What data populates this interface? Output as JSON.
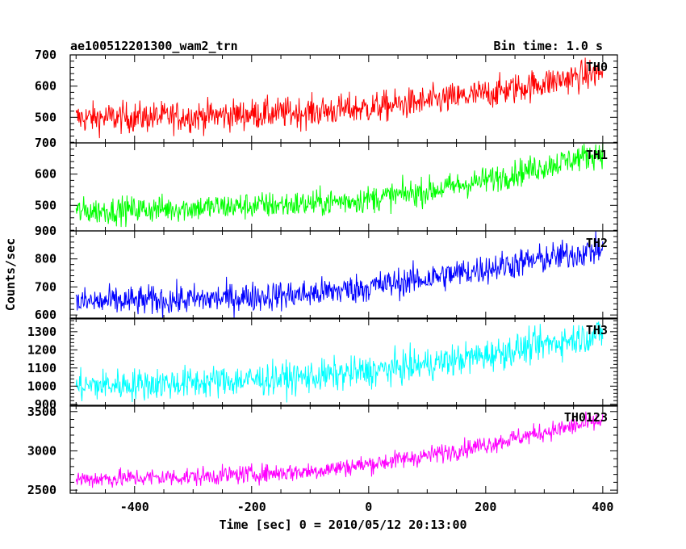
{
  "header": {
    "title": "ae100512201300_wam2_trn",
    "bin_time": "Bin time: 1.0 s"
  },
  "chart_data": {
    "type": "line",
    "title": "ae100512201300_wam2_trn",
    "subtitle": "Bin time: 1.0 s",
    "xlabel": "Time [sec] 0 = 2010/05/12 20:13:00",
    "ylabel": "Counts/sec",
    "xlim": [
      -510,
      425
    ],
    "xticks": [
      -400,
      -200,
      0,
      200,
      400
    ],
    "x_range": [
      -500,
      400
    ],
    "bin_time": 1.0,
    "panels": [
      {
        "name": "TH0",
        "color": "#ff0000",
        "ylim": [
          418,
          700
        ],
        "yticks": [
          500,
          600,
          700
        ],
        "trend": [
          [
            -500,
            497
          ],
          [
            -300,
            503
          ],
          [
            -100,
            517
          ],
          [
            0,
            530
          ],
          [
            100,
            550
          ],
          [
            200,
            575
          ],
          [
            300,
            610
          ],
          [
            400,
            645
          ]
        ],
        "noise": 25
      },
      {
        "name": "TH1",
        "color": "#00ff00",
        "ylim": [
          418,
          700
        ],
        "yticks": [
          500,
          600,
          700
        ],
        "trend": [
          [
            -500,
            480
          ],
          [
            -300,
            492
          ],
          [
            -100,
            505
          ],
          [
            0,
            520
          ],
          [
            100,
            545
          ],
          [
            200,
            580
          ],
          [
            300,
            625
          ],
          [
            400,
            670
          ]
        ],
        "noise": 22
      },
      {
        "name": "TH2",
        "color": "#0000ff",
        "ylim": [
          586,
          900
        ],
        "yticks": [
          600,
          700,
          800,
          900
        ],
        "trend": [
          [
            -500,
            645
          ],
          [
            -300,
            655
          ],
          [
            -100,
            675
          ],
          [
            0,
            700
          ],
          [
            100,
            730
          ],
          [
            200,
            765
          ],
          [
            300,
            800
          ],
          [
            400,
            835
          ]
        ],
        "noise": 27
      },
      {
        "name": "TH3",
        "color": "#00ffff",
        "ylim": [
          890,
          1375
        ],
        "yticks": [
          900,
          1000,
          1100,
          1200,
          1300
        ],
        "trend": [
          [
            -500,
            1000
          ],
          [
            -300,
            1020
          ],
          [
            -100,
            1050
          ],
          [
            0,
            1080
          ],
          [
            100,
            1120
          ],
          [
            200,
            1170
          ],
          [
            300,
            1230
          ],
          [
            400,
            1290
          ]
        ],
        "noise": 45
      },
      {
        "name": "TH0123",
        "color": "#ff00ff",
        "ylim": [
          2460,
          3580
        ],
        "yticks": [
          2500,
          3000,
          3500
        ],
        "trend": [
          [
            -500,
            2640
          ],
          [
            -300,
            2670
          ],
          [
            -100,
            2740
          ],
          [
            0,
            2830
          ],
          [
            100,
            2940
          ],
          [
            200,
            3080
          ],
          [
            300,
            3240
          ],
          [
            400,
            3380
          ]
        ],
        "noise": 60
      }
    ]
  }
}
